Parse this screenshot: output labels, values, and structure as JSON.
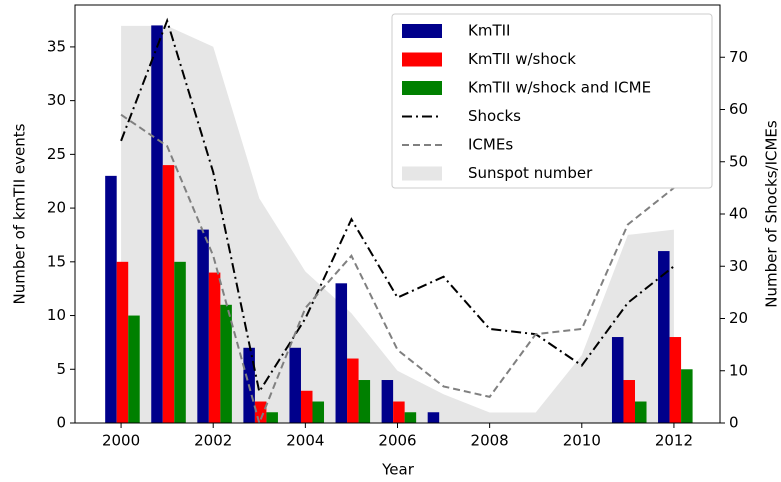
{
  "chart_data": {
    "type": "bar",
    "x": [
      2000,
      2001,
      2002,
      2003,
      2004,
      2005,
      2006,
      2007,
      2008,
      2009,
      2010,
      2011,
      2012
    ],
    "xlabel": "Year",
    "ylabel": "Number of kmTII events",
    "y2label": "Number of Shocks/ICMEs",
    "xlim": [
      1999,
      2013
    ],
    "xticks": [
      2000,
      2002,
      2004,
      2006,
      2008,
      2010,
      2012
    ],
    "ylim": [
      0,
      38.9
    ],
    "yticks": [
      0,
      5,
      10,
      15,
      20,
      25,
      30,
      35
    ],
    "y2lim": [
      0,
      80
    ],
    "y2ticks": [
      0,
      10,
      20,
      30,
      40,
      50,
      60,
      70
    ],
    "legend": "upper right",
    "series": [
      {
        "name": "KmTII",
        "type": "bar",
        "color": "#00008b",
        "values": [
          23,
          37,
          18,
          7,
          7,
          13,
          4,
          1,
          0,
          0,
          0,
          8,
          16
        ]
      },
      {
        "name": "KmTII w/shock",
        "type": "bar",
        "color": "#ff0000",
        "values": [
          15,
          24,
          14,
          2,
          3,
          6,
          2,
          0,
          0,
          0,
          0,
          4,
          8
        ]
      },
      {
        "name": "KmTII w/shock and ICME",
        "type": "bar",
        "color": "#008000",
        "values": [
          10,
          15,
          11,
          1,
          2,
          4,
          1,
          0,
          0,
          0,
          0,
          2,
          5
        ]
      },
      {
        "name": "Shocks",
        "type": "line",
        "axis": "y2",
        "color": "#000000",
        "dash": "dashdot",
        "values": [
          54,
          77,
          48,
          6,
          20,
          39,
          24,
          28,
          18,
          17,
          11,
          23,
          30
        ]
      },
      {
        "name": "ICMEs",
        "type": "line",
        "axis": "y2",
        "color": "#808080",
        "dash": "dashed",
        "values": [
          59,
          53,
          32,
          0,
          22,
          32,
          14,
          7,
          5,
          17,
          18,
          38,
          45
        ]
      },
      {
        "name": "Sunspot number",
        "type": "area",
        "axis": "y2",
        "color": "#e6e6e6",
        "values": [
          76,
          76,
          72,
          43,
          29,
          21,
          10,
          5.5,
          2,
          2,
          13,
          36,
          37
        ]
      }
    ]
  }
}
